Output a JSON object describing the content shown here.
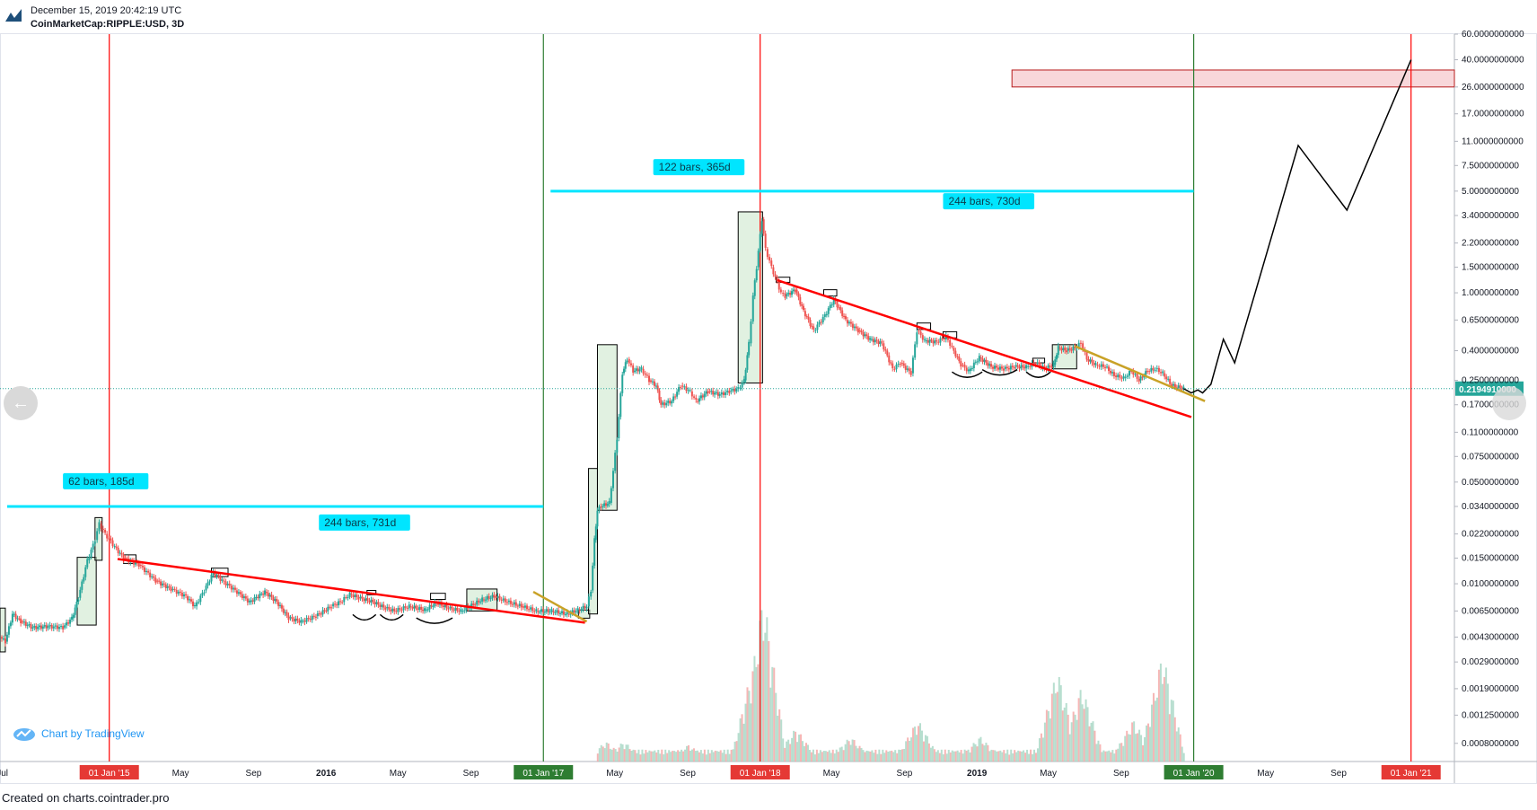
{
  "header": {
    "timestamp": "December 15, 2019 20:42:19 UTC",
    "symbol": "CoinMarketCap:RIPPLE:USD, 3D"
  },
  "footer": {
    "created_on": "Created on charts.cointrader.pro"
  },
  "branding": {
    "chart_by": "Chart by TradingView"
  },
  "nav": {
    "left_icon": "arrow-left-icon",
    "right_icon": "arrow-right-icon"
  },
  "colors": {
    "up": "#26a69a",
    "down": "#ef5350",
    "trendline_red": "#ff0000",
    "trendline_gold": "#c9a227",
    "cycle_red": "#ff0000",
    "cycle_green": "#2e7d32",
    "measure_cyan": "#00e5ff",
    "highlight_box": "#c8e6c9",
    "target_zone": "#f8d7da",
    "price_tag": "#26a69a"
  },
  "chart_data": {
    "type": "candlestick",
    "title": "CoinMarketCap:RIPPLE:USD, 3D",
    "scale": "log",
    "x_range": [
      "2014-07-01",
      "2021-03-15"
    ],
    "y_range": [
      0.0006,
      60
    ],
    "x_ticks": [
      {
        "date": "2014-07-05",
        "label": "Jul"
      },
      {
        "date": "2015-01-01",
        "label": "01 Jan '15",
        "badge": "red"
      },
      {
        "date": "2015-05-01",
        "label": "May"
      },
      {
        "date": "2015-09-01",
        "label": "Sep"
      },
      {
        "date": "2016-01-01",
        "label": "2016",
        "bold": true
      },
      {
        "date": "2016-05-01",
        "label": "May"
      },
      {
        "date": "2016-09-01",
        "label": "Sep"
      },
      {
        "date": "2017-01-01",
        "label": "01 Jan '17",
        "badge": "green"
      },
      {
        "date": "2017-05-01",
        "label": "May"
      },
      {
        "date": "2017-09-01",
        "label": "Sep"
      },
      {
        "date": "2018-01-01",
        "label": "01 Jan '18",
        "badge": "red"
      },
      {
        "date": "2018-05-01",
        "label": "May"
      },
      {
        "date": "2018-09-01",
        "label": "Sep"
      },
      {
        "date": "2019-01-01",
        "label": "2019",
        "bold": true
      },
      {
        "date": "2019-05-01",
        "label": "May"
      },
      {
        "date": "2019-09-01",
        "label": "Sep"
      },
      {
        "date": "2020-01-01",
        "label": "01 Jan '20",
        "badge": "green"
      },
      {
        "date": "2020-05-01",
        "label": "May"
      },
      {
        "date": "2020-09-01",
        "label": "Sep"
      },
      {
        "date": "2021-01-01",
        "label": "01 Jan '21",
        "badge": "red"
      }
    ],
    "y_ticks": [
      {
        "value": 60,
        "label": "60.0000000000"
      },
      {
        "value": 40,
        "label": "40.0000000000"
      },
      {
        "value": 26,
        "label": "26.0000000000"
      },
      {
        "value": 17,
        "label": "17.0000000000"
      },
      {
        "value": 11,
        "label": "11.0000000000"
      },
      {
        "value": 7.5,
        "label": "7.5000000000"
      },
      {
        "value": 5,
        "label": "5.0000000000"
      },
      {
        "value": 3.4,
        "label": "3.4000000000"
      },
      {
        "value": 2.2,
        "label": "2.2000000000"
      },
      {
        "value": 1.5,
        "label": "1.5000000000"
      },
      {
        "value": 1,
        "label": "1.0000000000"
      },
      {
        "value": 0.65,
        "label": "0.6500000000"
      },
      {
        "value": 0.4,
        "label": "0.4000000000"
      },
      {
        "value": 0.25,
        "label": "0.2500000000"
      },
      {
        "value": 0.17,
        "label": "0.1700000000"
      },
      {
        "value": 0.11,
        "label": "0.1100000000"
      },
      {
        "value": 0.075,
        "label": "0.0750000000"
      },
      {
        "value": 0.05,
        "label": "0.0500000000"
      },
      {
        "value": 0.034,
        "label": "0.0340000000"
      },
      {
        "value": 0.022,
        "label": "0.0220000000"
      },
      {
        "value": 0.015,
        "label": "0.0150000000"
      },
      {
        "value": 0.01,
        "label": "0.0100000000"
      },
      {
        "value": 0.0065,
        "label": "0.0065000000"
      },
      {
        "value": 0.0043,
        "label": "0.0043000000"
      },
      {
        "value": 0.0029,
        "label": "0.0029000000"
      },
      {
        "value": 0.0019,
        "label": "0.0019000000"
      },
      {
        "value": 0.00125,
        "label": "0.0012500000"
      },
      {
        "value": 0.0008,
        "label": "0.0008000000"
      }
    ],
    "last_price": {
      "value": 0.21949,
      "label": "0.2194910000"
    },
    "price_path": [
      [
        "2014-07-01",
        0.0043
      ],
      [
        "2014-07-10",
        0.004
      ],
      [
        "2014-07-22",
        0.0062
      ],
      [
        "2014-08-05",
        0.0055
      ],
      [
        "2014-08-25",
        0.005
      ],
      [
        "2014-09-20",
        0.0051
      ],
      [
        "2014-10-15",
        0.005
      ],
      [
        "2014-10-30",
        0.0058
      ],
      [
        "2014-11-10",
        0.008
      ],
      [
        "2014-11-25",
        0.0145
      ],
      [
        "2014-12-08",
        0.02
      ],
      [
        "2014-12-15",
        0.026
      ],
      [
        "2014-12-25",
        0.022
      ],
      [
        "2015-01-10",
        0.018
      ],
      [
        "2015-01-25",
        0.015
      ],
      [
        "2015-02-20",
        0.0135
      ],
      [
        "2015-03-20",
        0.0105
      ],
      [
        "2015-04-15",
        0.0092
      ],
      [
        "2015-05-10",
        0.0082
      ],
      [
        "2015-05-25",
        0.007
      ],
      [
        "2015-06-10",
        0.009
      ],
      [
        "2015-06-25",
        0.012
      ],
      [
        "2015-07-10",
        0.0105
      ],
      [
        "2015-08-01",
        0.009
      ],
      [
        "2015-08-25",
        0.0075
      ],
      [
        "2015-09-20",
        0.0088
      ],
      [
        "2015-10-10",
        0.0075
      ],
      [
        "2015-10-30",
        0.0058
      ],
      [
        "2015-11-20",
        0.0055
      ],
      [
        "2015-12-15",
        0.006
      ],
      [
        "2016-01-10",
        0.007
      ],
      [
        "2016-01-25",
        0.0075
      ],
      [
        "2016-02-10",
        0.0085
      ],
      [
        "2016-02-25",
        0.008
      ],
      [
        "2016-03-20",
        0.0075
      ],
      [
        "2016-04-10",
        0.0068
      ],
      [
        "2016-04-25",
        0.0065
      ],
      [
        "2016-05-20",
        0.007
      ],
      [
        "2016-06-15",
        0.0066
      ],
      [
        "2016-07-05",
        0.0074
      ],
      [
        "2016-07-25",
        0.0068
      ],
      [
        "2016-08-15",
        0.0065
      ],
      [
        "2016-09-05",
        0.0072
      ],
      [
        "2016-09-20",
        0.0078
      ],
      [
        "2016-10-10",
        0.0082
      ],
      [
        "2016-11-01",
        0.0075
      ],
      [
        "2016-11-25",
        0.007
      ],
      [
        "2016-12-20",
        0.0065
      ],
      [
        "2017-01-15",
        0.0065
      ],
      [
        "2017-02-10",
        0.0062
      ],
      [
        "2017-02-28",
        0.0066
      ],
      [
        "2017-03-15",
        0.007
      ],
      [
        "2017-03-22",
        0.009
      ],
      [
        "2017-03-28",
        0.02
      ],
      [
        "2017-04-02",
        0.032
      ],
      [
        "2017-04-08",
        0.034
      ],
      [
        "2017-04-22",
        0.036
      ],
      [
        "2017-05-05",
        0.1
      ],
      [
        "2017-05-14",
        0.28
      ],
      [
        "2017-05-22",
        0.35
      ],
      [
        "2017-06-01",
        0.29
      ],
      [
        "2017-06-15",
        0.3
      ],
      [
        "2017-06-28",
        0.25
      ],
      [
        "2017-07-10",
        0.23
      ],
      [
        "2017-07-18",
        0.17
      ],
      [
        "2017-08-05",
        0.18
      ],
      [
        "2017-08-20",
        0.23
      ],
      [
        "2017-09-05",
        0.21
      ],
      [
        "2017-09-15",
        0.18
      ],
      [
        "2017-10-05",
        0.21
      ],
      [
        "2017-10-25",
        0.2
      ],
      [
        "2017-11-10",
        0.21
      ],
      [
        "2017-11-25",
        0.22
      ],
      [
        "2017-12-05",
        0.25
      ],
      [
        "2017-12-13",
        0.45
      ],
      [
        "2017-12-20",
        0.95
      ],
      [
        "2017-12-26",
        1.5
      ],
      [
        "2018-01-04",
        3.2
      ],
      [
        "2018-01-10",
        2.0
      ],
      [
        "2018-01-20",
        1.5
      ],
      [
        "2018-02-05",
        1.0
      ],
      [
        "2018-02-12",
        0.95
      ],
      [
        "2018-03-01",
        1.05
      ],
      [
        "2018-03-15",
        0.75
      ],
      [
        "2018-04-01",
        0.55
      ],
      [
        "2018-04-20",
        0.7
      ],
      [
        "2018-05-05",
        0.9
      ],
      [
        "2018-05-25",
        0.65
      ],
      [
        "2018-06-15",
        0.55
      ],
      [
        "2018-07-05",
        0.48
      ],
      [
        "2018-07-25",
        0.45
      ],
      [
        "2018-08-12",
        0.3
      ],
      [
        "2018-08-25",
        0.33
      ],
      [
        "2018-09-12",
        0.28
      ],
      [
        "2018-09-22",
        0.55
      ],
      [
        "2018-10-05",
        0.47
      ],
      [
        "2018-10-25",
        0.46
      ],
      [
        "2018-11-10",
        0.5
      ],
      [
        "2018-11-20",
        0.42
      ],
      [
        "2018-12-05",
        0.32
      ],
      [
        "2018-12-18",
        0.29
      ],
      [
        "2019-01-05",
        0.36
      ],
      [
        "2019-01-25",
        0.31
      ],
      [
        "2019-02-15",
        0.3
      ],
      [
        "2019-03-05",
        0.31
      ],
      [
        "2019-03-25",
        0.31
      ],
      [
        "2019-04-10",
        0.33
      ],
      [
        "2019-04-25",
        0.3
      ],
      [
        "2019-05-10",
        0.32
      ],
      [
        "2019-05-18",
        0.42
      ],
      [
        "2019-06-01",
        0.4
      ],
      [
        "2019-06-15",
        0.42
      ],
      [
        "2019-06-25",
        0.45
      ],
      [
        "2019-07-05",
        0.35
      ],
      [
        "2019-07-20",
        0.32
      ],
      [
        "2019-08-05",
        0.31
      ],
      [
        "2019-08-20",
        0.27
      ],
      [
        "2019-09-05",
        0.26
      ],
      [
        "2019-09-18",
        0.29
      ],
      [
        "2019-10-01",
        0.25
      ],
      [
        "2019-10-15",
        0.29
      ],
      [
        "2019-10-28",
        0.3
      ],
      [
        "2019-11-10",
        0.28
      ],
      [
        "2019-11-25",
        0.23
      ],
      [
        "2019-12-15",
        0.2195
      ]
    ],
    "projection": [
      [
        "2019-12-15",
        0.2195
      ],
      [
        "2019-12-28",
        0.205
      ],
      [
        "2020-01-08",
        0.215
      ],
      [
        "2020-01-16",
        0.205
      ],
      [
        "2020-01-30",
        0.235
      ],
      [
        "2020-02-20",
        0.48
      ],
      [
        "2020-03-10",
        0.33
      ],
      [
        "2020-06-25",
        10.3
      ],
      [
        "2020-09-15",
        3.7
      ],
      [
        "2021-01-01",
        40
      ]
    ],
    "highlight_boxes": [
      {
        "x1": "2014-07-01",
        "x2": "2014-07-10",
        "y1": 0.0034,
        "y2": 0.0068,
        "filled": true
      },
      {
        "x1": "2014-11-08",
        "x2": "2014-12-10",
        "y1": 0.0052,
        "y2": 0.0152,
        "filled": true
      },
      {
        "x1": "2014-12-08",
        "x2": "2014-12-20",
        "y1": 0.0145,
        "y2": 0.0285,
        "filled": true
      },
      {
        "x1": "2015-01-25",
        "x2": "2015-02-15",
        "y1": 0.0138,
        "y2": 0.0158,
        "filled": false
      },
      {
        "x1": "2015-06-22",
        "x2": "2015-07-20",
        "y1": 0.0112,
        "y2": 0.0128,
        "filled": false
      },
      {
        "x1": "2016-03-10",
        "x2": "2016-03-25",
        "y1": 0.0084,
        "y2": 0.009,
        "filled": false
      },
      {
        "x1": "2016-06-25",
        "x2": "2016-07-20",
        "y1": 0.0078,
        "y2": 0.0086,
        "filled": false
      },
      {
        "x1": "2016-08-25",
        "x2": "2016-10-15",
        "y1": 0.0065,
        "y2": 0.0092,
        "filled": true
      },
      {
        "x1": "2017-03-01",
        "x2": "2017-03-20",
        "y1": 0.0058,
        "y2": 0.0066,
        "filled": true
      },
      {
        "x1": "2017-03-18",
        "x2": "2017-04-02",
        "y1": 0.0062,
        "y2": 0.062,
        "filled": true
      },
      {
        "x1": "2017-04-02",
        "x2": "2017-05-05",
        "y1": 0.032,
        "y2": 0.44,
        "filled": true
      },
      {
        "x1": "2017-11-25",
        "x2": "2018-01-05",
        "y1": 0.24,
        "y2": 3.6,
        "filled": true
      },
      {
        "x1": "2018-01-28",
        "x2": "2018-02-20",
        "y1": 1.18,
        "y2": 1.28,
        "filled": false
      },
      {
        "x1": "2018-04-18",
        "x2": "2018-05-10",
        "y1": 0.95,
        "y2": 1.05,
        "filled": false
      },
      {
        "x1": "2018-09-22",
        "x2": "2018-10-15",
        "y1": 0.56,
        "y2": 0.62,
        "filled": false
      },
      {
        "x1": "2018-11-05",
        "x2": "2018-11-28",
        "y1": 0.49,
        "y2": 0.54,
        "filled": false
      },
      {
        "x1": "2019-04-05",
        "x2": "2019-04-25",
        "y1": 0.33,
        "y2": 0.355,
        "filled": false
      },
      {
        "x1": "2019-05-08",
        "x2": "2019-06-18",
        "y1": 0.3,
        "y2": 0.44,
        "filled": true
      }
    ],
    "target_zone": {
      "x1": "2019-03-01",
      "x2": "2021-03-15",
      "y1": 26,
      "y2": 34
    },
    "trendlines": [
      {
        "color": "red",
        "from": [
          "2015-01-15",
          0.0148
        ],
        "to": [
          "2017-03-12",
          0.0054
        ]
      },
      {
        "color": "gold",
        "from": [
          "2016-12-15",
          0.0088
        ],
        "to": [
          "2017-03-15",
          0.0055
        ]
      },
      {
        "color": "red",
        "from": [
          "2018-01-30",
          1.22
        ],
        "to": [
          "2019-12-28",
          0.14
        ]
      },
      {
        "color": "gold",
        "from": [
          "2019-06-15",
          0.43
        ],
        "to": [
          "2020-01-20",
          0.18
        ]
      }
    ],
    "cup_arcs": [
      {
        "x1": "2016-02-15",
        "x2": "2016-03-25",
        "y": 0.0058
      },
      {
        "x1": "2016-04-01",
        "x2": "2016-05-10",
        "y": 0.0058
      },
      {
        "x1": "2016-06-01",
        "x2": "2016-08-01",
        "y": 0.0055
      },
      {
        "x1": "2018-11-20",
        "x2": "2019-01-10",
        "y": 0.27
      },
      {
        "x1": "2019-01-10",
        "x2": "2019-03-10",
        "y": 0.28
      },
      {
        "x1": "2019-03-25",
        "x2": "2019-05-05",
        "y": 0.27
      }
    ],
    "cycle_lines": [
      {
        "date": "2015-01-01",
        "color": "red"
      },
      {
        "date": "2017-01-01",
        "color": "green"
      },
      {
        "date": "2018-01-01",
        "color": "red"
      },
      {
        "date": "2020-01-01",
        "color": "green"
      },
      {
        "date": "2021-01-01",
        "color": "red"
      }
    ],
    "measurements": [
      {
        "from": "2014-07-01",
        "to": "2017-01-01",
        "y": 0.034,
        "label": "62 bars, 185d",
        "label_x": "2014-10-15",
        "label_y": 0.05
      },
      {
        "label": "244 bars, 731d",
        "label_x": "2015-12-20",
        "label_y": 0.026
      },
      {
        "from": "2017-01-01",
        "to": "2020-01-01",
        "y": 5.0,
        "label": "122 bars, 365d",
        "label_x": "2017-07-05",
        "label_y": 7.2
      },
      {
        "label": "244 bars, 730d",
        "label_x": "2018-11-05",
        "label_y": 4.2
      }
    ],
    "volume_spikes": [
      [
        "2017-04-15",
        0.12
      ],
      [
        "2017-05-15",
        0.12
      ],
      [
        "2017-09-01",
        0.1
      ],
      [
        "2017-12-20",
        0.6
      ],
      [
        "2018-01-05",
        1.0
      ],
      [
        "2018-01-10",
        0.45
      ],
      [
        "2018-03-01",
        0.2
      ],
      [
        "2018-06-01",
        0.15
      ],
      [
        "2018-09-22",
        0.25
      ],
      [
        "2019-01-05",
        0.15
      ],
      [
        "2019-05-15",
        0.55
      ],
      [
        "2019-06-25",
        0.45
      ],
      [
        "2019-09-20",
        0.25
      ],
      [
        "2019-11-08",
        0.65
      ]
    ]
  }
}
